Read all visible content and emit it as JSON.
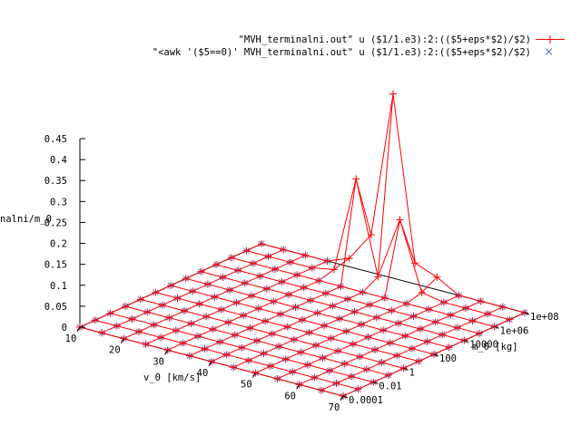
{
  "chart_data": {
    "type": "surface",
    "title": "",
    "xlabel": "v_0 [km/s]",
    "ylabel": "m_0 [kg]",
    "zlabel": "nalni/m_0",
    "x_ticks": [
      "10",
      "20",
      "30",
      "40",
      "50",
      "60",
      "70"
    ],
    "y_ticks": [
      "0.0001",
      "0.01",
      "1",
      "100",
      "10000",
      "1e+06",
      "1e+08"
    ],
    "z_ticks": [
      "0",
      "0.05",
      "0.1",
      "0.15",
      "0.2",
      "0.25",
      "0.3",
      "0.35",
      "0.4",
      "0.45"
    ],
    "xlim": [
      10,
      70
    ],
    "ylim_log10": [
      -4,
      8
    ],
    "zlim": [
      0,
      0.45
    ],
    "grid": {
      "v0_values": [
        10,
        15,
        20,
        25,
        30,
        35,
        40,
        45,
        50,
        55,
        60,
        65,
        70
      ],
      "log10_m0_values": [
        -4,
        -3,
        -2,
        -1,
        0,
        1,
        2,
        3,
        4,
        5,
        6,
        7,
        8
      ]
    },
    "series": [
      {
        "name": "\"MVH_terminalni.out\" u ($1/1.e3):2:(($5+eps*$2)/$2)",
        "color": "#ff0000",
        "marker": "+",
        "nonzero_points": [
          {
            "v0": 30,
            "log10_m0": 8,
            "value": 0.02
          },
          {
            "v0": 35,
            "log10_m0": 8,
            "value": 0.09
          },
          {
            "v0": 40,
            "log10_m0": 8,
            "value": 0.44
          },
          {
            "v0": 45,
            "log10_m0": 8,
            "value": 0.05
          },
          {
            "v0": 50,
            "log10_m0": 8,
            "value": 0.03
          },
          {
            "v0": 30,
            "log10_m0": 7,
            "value": 0.01
          },
          {
            "v0": 35,
            "log10_m0": 7,
            "value": 0.24
          },
          {
            "v0": 40,
            "log10_m0": 7,
            "value": 0.02
          },
          {
            "v0": 45,
            "log10_m0": 7,
            "value": 0.17
          },
          {
            "v0": 50,
            "log10_m0": 7,
            "value": 0.01
          }
        ]
      },
      {
        "name": "\"<awk '($5==0)' MVH_terminalni.out\" u ($1/1.e3):2:(($5+eps*$2)/$2)",
        "color": "#5a6ec8",
        "marker": "x",
        "description_value": 0
      }
    ],
    "legend_position": "top-right"
  }
}
